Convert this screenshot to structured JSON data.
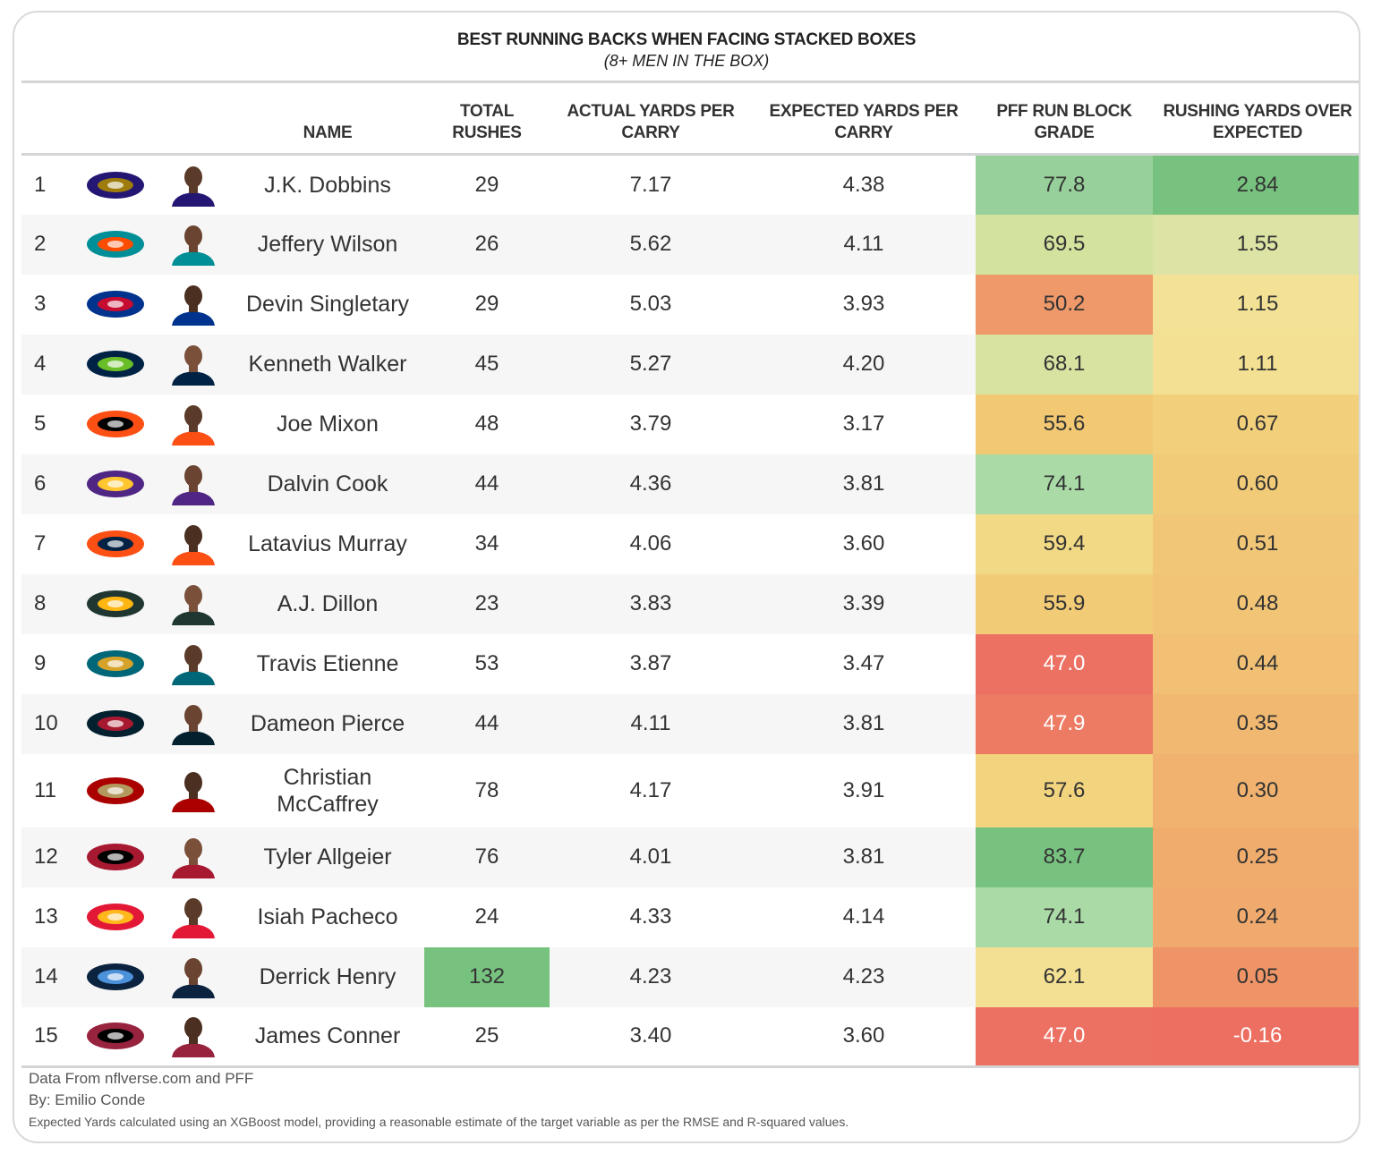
{
  "title": "BEST RUNNING BACKS WHEN FACING STACKED BOXES",
  "subtitle": "(8+ MEN IN THE BOX)",
  "headers": {
    "name": "NAME",
    "total_rushes": "TOTAL RUSHES",
    "actual_ypc": "ACTUAL YARDS PER CARRY",
    "expected_ypc": "EXPECTED YARDS PER CARRY",
    "run_block": "PFF RUN BLOCK GRADE",
    "ryoe": "RUSHING YARDS OVER EXPECTED"
  },
  "footer": {
    "line1": "Data From nflverse.com and PFF",
    "line2": "By: Emilio Conde",
    "line3": "Expected Yards calculated using an XGBoost model, providing a reasonable estimate of the target variable as per the RMSE and R-squared values."
  },
  "colors": {
    "green_dark": "#78c27f",
    "green_mid": "#97d09a",
    "green_light": "#aadba7",
    "yellow_green": "#d6e3a2",
    "yellow": "#f3de8a",
    "yellow_orange": "#f2cc79",
    "orange_light": "#f0bc73",
    "orange": "#f0a66e",
    "orange_deep": "#ee9366",
    "red": "#ec6f61"
  },
  "chart_data": {
    "type": "table",
    "title": "BEST RUNNING BACKS WHEN FACING STACKED BOXES",
    "columns": [
      "Rank",
      "Team",
      "Name",
      "Total Rushes",
      "Actual Yards Per Carry",
      "Expected Yards Per Carry",
      "PFF Run Block Grade",
      "Rushing Yards Over Expected"
    ],
    "rows": [
      {
        "rank": "1",
        "team": "ravens",
        "name": "J.K. Dobbins",
        "rushes": "29",
        "actual": "7.17",
        "expected": "4.38",
        "grade": "77.8",
        "ryoe": "2.84",
        "grade_color": "#97d09a",
        "ryoe_color": "#78c27f",
        "rush_color": ""
      },
      {
        "rank": "2",
        "team": "dolphins",
        "name": "Jeffery Wilson",
        "rushes": "26",
        "actual": "5.62",
        "expected": "4.11",
        "grade": "69.5",
        "ryoe": "1.55",
        "grade_color": "#d3e39e",
        "ryoe_color": "#dde3a4",
        "rush_color": ""
      },
      {
        "rank": "3",
        "team": "bills",
        "name": "Devin Singletary",
        "rushes": "29",
        "actual": "5.03",
        "expected": "3.93",
        "grade": "50.2",
        "ryoe": "1.15",
        "grade_color": "#ef986a",
        "ryoe_color": "#f3e295",
        "rush_color": ""
      },
      {
        "rank": "4",
        "team": "seahawks",
        "name": "Kenneth Walker",
        "rushes": "45",
        "actual": "5.27",
        "expected": "4.20",
        "grade": "68.1",
        "ryoe": "1.11",
        "grade_color": "#d8e3a2",
        "ryoe_color": "#f3e092",
        "rush_color": ""
      },
      {
        "rank": "5",
        "team": "bengals",
        "name": "Joe Mixon",
        "rushes": "48",
        "actual": "3.79",
        "expected": "3.17",
        "grade": "55.6",
        "ryoe": "0.67",
        "grade_color": "#f2c873",
        "ryoe_color": "#f2cf7a",
        "rush_color": ""
      },
      {
        "rank": "6",
        "team": "vikings",
        "name": "Dalvin Cook",
        "rushes": "44",
        "actual": "4.36",
        "expected": "3.81",
        "grade": "74.1",
        "ryoe": "0.60",
        "grade_color": "#aadba7",
        "ryoe_color": "#f2cb78",
        "rush_color": ""
      },
      {
        "rank": "7",
        "team": "broncos",
        "name": "Latavius Murray",
        "rushes": "34",
        "actual": "4.06",
        "expected": "3.60",
        "grade": "59.4",
        "ryoe": "0.51",
        "grade_color": "#f2d985",
        "ryoe_color": "#f1c676",
        "rush_color": ""
      },
      {
        "rank": "8",
        "team": "packers",
        "name": "A.J. Dillon",
        "rushes": "23",
        "actual": "3.83",
        "expected": "3.39",
        "grade": "55.9",
        "ryoe": "0.48",
        "grade_color": "#f2cb76",
        "ryoe_color": "#f1c476",
        "rush_color": ""
      },
      {
        "rank": "9",
        "team": "jaguars",
        "name": "Travis Etienne",
        "rushes": "53",
        "actual": "3.87",
        "expected": "3.47",
        "grade": "47.0",
        "ryoe": "0.44",
        "grade_color": "#ec7163",
        "ryoe_color": "#f1c074",
        "rush_color": ""
      },
      {
        "rank": "10",
        "team": "texans",
        "name": "Dameon Pierce",
        "rushes": "44",
        "actual": "4.11",
        "expected": "3.81",
        "grade": "47.9",
        "ryoe": "0.35",
        "grade_color": "#ed7b64",
        "ryoe_color": "#f0b870",
        "rush_color": ""
      },
      {
        "rank": "11",
        "team": "49ers",
        "name": "Christian McCaffrey",
        "rushes": "78",
        "actual": "4.17",
        "expected": "3.91",
        "grade": "57.6",
        "ryoe": "0.30",
        "grade_color": "#f2d37e",
        "ryoe_color": "#f0b26e",
        "rush_color": ""
      },
      {
        "rank": "12",
        "team": "falcons",
        "name": "Tyler Allgeier",
        "rushes": "76",
        "actual": "4.01",
        "expected": "3.81",
        "grade": "83.7",
        "ryoe": "0.25",
        "grade_color": "#78c27f",
        "ryoe_color": "#f0ac6d",
        "rush_color": ""
      },
      {
        "rank": "13",
        "team": "chiefs",
        "name": "Isiah Pacheco",
        "rushes": "24",
        "actual": "4.33",
        "expected": "4.14",
        "grade": "74.1",
        "ryoe": "0.24",
        "grade_color": "#aadba7",
        "ryoe_color": "#f0aa6d",
        "rush_color": ""
      },
      {
        "rank": "14",
        "team": "titans",
        "name": "Derrick Henry",
        "rushes": "132",
        "actual": "4.23",
        "expected": "4.23",
        "grade": "62.1",
        "ryoe": "0.05",
        "grade_color": "#f3e092",
        "ryoe_color": "#ee9467",
        "rush_color": "#78c27f"
      },
      {
        "rank": "15",
        "team": "cardinals",
        "name": "James Conner",
        "rushes": "25",
        "actual": "3.40",
        "expected": "3.60",
        "grade": "47.0",
        "ryoe": "-0.16",
        "grade_color": "#ec7163",
        "ryoe_color": "#ec6f61",
        "rush_color": ""
      }
    ]
  }
}
